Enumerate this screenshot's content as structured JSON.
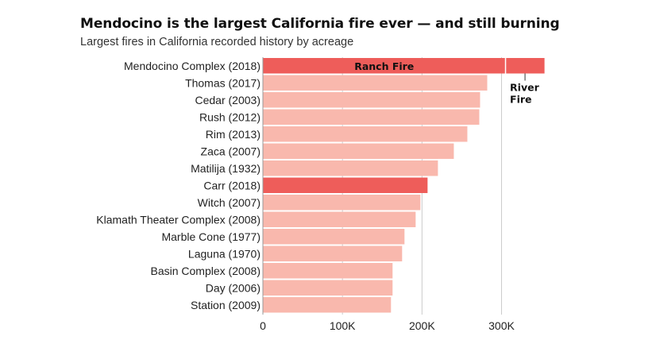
{
  "chart_data": {
    "type": "bar",
    "orientation": "horizontal",
    "title": "Mendocino is the largest California fire ever — and still burning",
    "subtitle": "Largest fires in California recorded history by acreage",
    "categories": [
      "Mendocino Complex (2018)",
      "Thomas (2017)",
      "Cedar (2003)",
      "Rush (2012)",
      "Rim (2013)",
      "Zaca (2007)",
      "Matilija (1932)",
      "Carr (2018)",
      "Witch (2007)",
      "Klamath Theater Complex (2008)",
      "Marble Cone (1977)",
      "Laguna (1970)",
      "Basin Complex (2008)",
      "Day (2006)",
      "Station (2009)"
    ],
    "values": [
      354000,
      282000,
      273000,
      272000,
      257000,
      240000,
      220000,
      207000,
      198000,
      192000,
      178000,
      175000,
      163000,
      163000,
      161000
    ],
    "highlighted": [
      "Mendocino Complex (2018)",
      "Carr (2018)"
    ],
    "segments": {
      "category": "Mendocino Complex (2018)",
      "parts": [
        {
          "name": "Ranch Fire",
          "value": 305000
        },
        {
          "name": "River Fire",
          "value": 49000
        }
      ]
    },
    "annotations": {
      "ranch_fire": "Ranch Fire",
      "river_fire_line1": "River",
      "river_fire_line2": "Fire"
    },
    "xlim": [
      0,
      360000
    ],
    "xticks": [
      0,
      100000,
      200000,
      300000
    ],
    "xtick_labels": [
      "0",
      "100K",
      "200K",
      "300K"
    ],
    "grid": "vertical gridlines at ticks",
    "colors": {
      "highlight": "#ee5d5a",
      "default": "#f9b8ad",
      "gridline": "#cccccc"
    }
  }
}
